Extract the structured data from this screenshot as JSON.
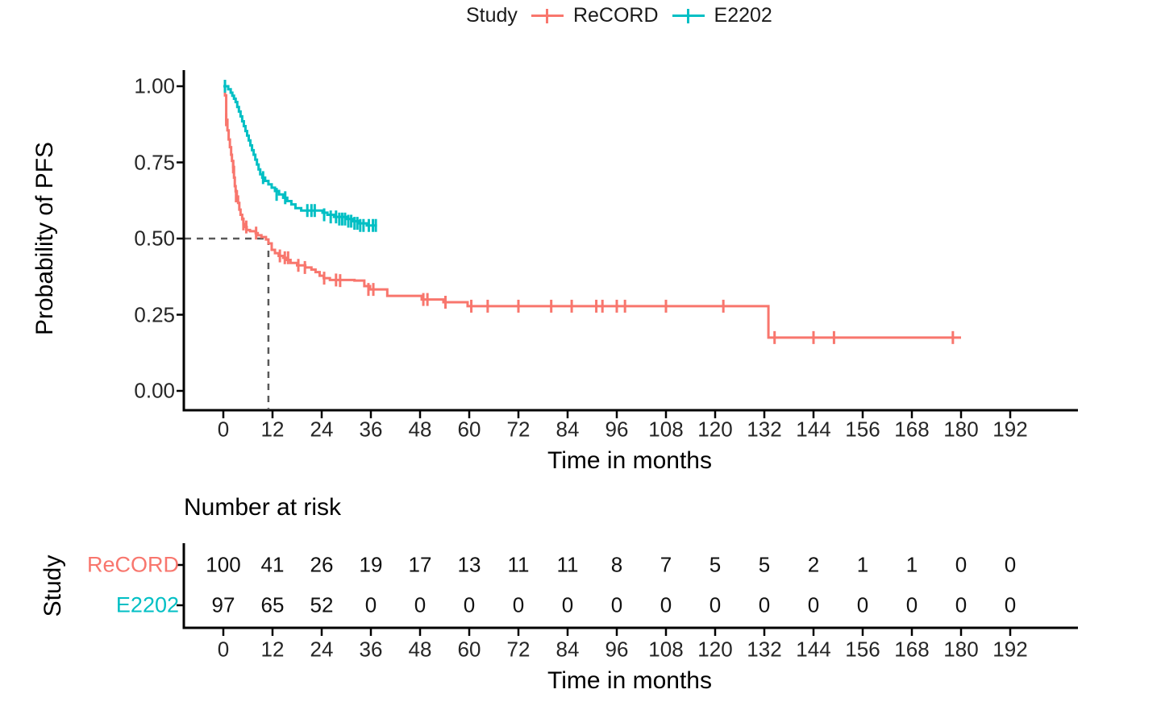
{
  "legend": {
    "title": "Study",
    "items": [
      {
        "label": "ReCORD",
        "color": "#F8766D"
      },
      {
        "label": "E2202",
        "color": "#00BFC4"
      }
    ]
  },
  "chart_data": {
    "type": "line",
    "subtype": "kaplan-meier-step",
    "title": "",
    "xlabel": "Time in months",
    "ylabel": "Probability of PFS",
    "xlim": [
      0,
      198
    ],
    "ylim": [
      0,
      1.0
    ],
    "xticks": [
      0,
      12,
      24,
      36,
      48,
      60,
      72,
      84,
      96,
      108,
      120,
      132,
      144,
      156,
      168,
      180,
      192
    ],
    "yticks": [
      0,
      0.25,
      0.5,
      0.75,
      1.0
    ],
    "ytick_labels": [
      "0.00",
      "0.25",
      "0.50",
      "0.75",
      "1.00"
    ],
    "grid": false,
    "legend_position": "top",
    "median_annotation": {
      "time": 11,
      "probability": 0.5,
      "style": "dashed",
      "color": "#595959"
    },
    "series": [
      {
        "name": "ReCORD",
        "color": "#F8766D",
        "points": [
          [
            0,
            1.0
          ],
          [
            0.4,
            0.97
          ],
          [
            0.7,
            0.89
          ],
          [
            1.0,
            0.855
          ],
          [
            1.3,
            0.825
          ],
          [
            1.6,
            0.8
          ],
          [
            1.9,
            0.775
          ],
          [
            2.1,
            0.755
          ],
          [
            2.4,
            0.735
          ],
          [
            2.6,
            0.7
          ],
          [
            2.8,
            0.672
          ],
          [
            3.0,
            0.655
          ],
          [
            3.3,
            0.638
          ],
          [
            3.6,
            0.617
          ],
          [
            3.9,
            0.595
          ],
          [
            4.2,
            0.578
          ],
          [
            4.6,
            0.563
          ],
          [
            4.9,
            0.548
          ],
          [
            5.3,
            0.538
          ],
          [
            5.7,
            0.528
          ],
          [
            6.5,
            0.524
          ],
          [
            7.9,
            0.518
          ],
          [
            8.4,
            0.511
          ],
          [
            9.3,
            0.505
          ],
          [
            10.4,
            0.497
          ],
          [
            11.0,
            0.484
          ],
          [
            11.8,
            0.463
          ],
          [
            12.6,
            0.452
          ],
          [
            13.5,
            0.443
          ],
          [
            14.6,
            0.437
          ],
          [
            15.5,
            0.43
          ],
          [
            16.4,
            0.42
          ],
          [
            18.0,
            0.412
          ],
          [
            20.0,
            0.405
          ],
          [
            21.5,
            0.398
          ],
          [
            22.5,
            0.39
          ],
          [
            23.5,
            0.378
          ],
          [
            24.5,
            0.37
          ],
          [
            26.0,
            0.364
          ],
          [
            32.0,
            0.362
          ],
          [
            34.4,
            0.344
          ],
          [
            35.8,
            0.333
          ],
          [
            40.0,
            0.312
          ],
          [
            48.4,
            0.3
          ],
          [
            53.7,
            0.291
          ],
          [
            59.6,
            0.278
          ],
          [
            133,
            0.278
          ],
          [
            133,
            0.175
          ],
          [
            180,
            0.175
          ]
        ],
        "censors": [
          [
            0.7,
            0.89
          ],
          [
            2.4,
            0.735
          ],
          [
            3.1,
            0.64
          ],
          [
            4.9,
            0.548
          ],
          [
            5.6,
            0.538
          ],
          [
            8.0,
            0.518
          ],
          [
            13.8,
            0.443
          ],
          [
            15.0,
            0.437
          ],
          [
            15.8,
            0.437
          ],
          [
            18.3,
            0.412
          ],
          [
            19.9,
            0.405
          ],
          [
            24.6,
            0.37
          ],
          [
            27.5,
            0.364
          ],
          [
            28.5,
            0.362
          ],
          [
            35.4,
            0.333
          ],
          [
            36.6,
            0.333
          ],
          [
            48.8,
            0.3
          ],
          [
            49.8,
            0.3
          ],
          [
            54.2,
            0.291
          ],
          [
            60.5,
            0.278
          ],
          [
            64.5,
            0.278
          ],
          [
            72,
            0.278
          ],
          [
            80,
            0.278
          ],
          [
            85,
            0.278
          ],
          [
            91,
            0.278
          ],
          [
            92.5,
            0.278
          ],
          [
            96,
            0.278
          ],
          [
            98,
            0.278
          ],
          [
            108,
            0.278
          ],
          [
            122,
            0.278
          ],
          [
            134.5,
            0.175
          ],
          [
            144,
            0.175
          ],
          [
            149,
            0.175
          ],
          [
            178,
            0.175
          ]
        ]
      },
      {
        "name": "E2202",
        "color": "#00BFC4",
        "points": [
          [
            0,
            1.0
          ],
          [
            1.2,
            0.99
          ],
          [
            1.8,
            0.979
          ],
          [
            2.2,
            0.969
          ],
          [
            2.6,
            0.959
          ],
          [
            3.0,
            0.948
          ],
          [
            3.4,
            0.932
          ],
          [
            3.8,
            0.917
          ],
          [
            4.2,
            0.901
          ],
          [
            4.6,
            0.885
          ],
          [
            5.0,
            0.869
          ],
          [
            5.4,
            0.853
          ],
          [
            5.8,
            0.838
          ],
          [
            6.2,
            0.822
          ],
          [
            6.6,
            0.806
          ],
          [
            7.0,
            0.79
          ],
          [
            7.4,
            0.775
          ],
          [
            7.8,
            0.759
          ],
          [
            8.2,
            0.743
          ],
          [
            8.6,
            0.727
          ],
          [
            9.0,
            0.711
          ],
          [
            9.5,
            0.7
          ],
          [
            10.2,
            0.689
          ],
          [
            11.0,
            0.678
          ],
          [
            11.8,
            0.667
          ],
          [
            12.6,
            0.656
          ],
          [
            13.6,
            0.645
          ],
          [
            14.6,
            0.634
          ],
          [
            15.6,
            0.623
          ],
          [
            16.6,
            0.612
          ],
          [
            17.6,
            0.6
          ],
          [
            19.0,
            0.592
          ],
          [
            24.2,
            0.585
          ],
          [
            25.4,
            0.578
          ],
          [
            27.0,
            0.571
          ],
          [
            30.0,
            0.564
          ],
          [
            31.5,
            0.557
          ],
          [
            33.0,
            0.55
          ],
          [
            35.0,
            0.543
          ],
          [
            37.5,
            0.543
          ]
        ],
        "censors": [
          [
            0.4,
            1.0
          ],
          [
            9.7,
            0.7
          ],
          [
            13.0,
            0.645
          ],
          [
            15.1,
            0.634
          ],
          [
            20.5,
            0.592
          ],
          [
            21.5,
            0.592
          ],
          [
            22.3,
            0.592
          ],
          [
            24.6,
            0.578
          ],
          [
            26.2,
            0.571
          ],
          [
            27.5,
            0.571
          ],
          [
            28.3,
            0.564
          ],
          [
            29.0,
            0.564
          ],
          [
            29.7,
            0.564
          ],
          [
            30.5,
            0.557
          ],
          [
            31.2,
            0.557
          ],
          [
            32.0,
            0.55
          ],
          [
            32.7,
            0.55
          ],
          [
            33.4,
            0.543
          ],
          [
            34.2,
            0.543
          ],
          [
            35.5,
            0.543
          ],
          [
            36.5,
            0.543
          ],
          [
            37.2,
            0.543
          ]
        ]
      }
    ]
  },
  "risk_table": {
    "title": "Number at risk",
    "axis_label": "Study",
    "xlabel": "Time in months",
    "xticks": [
      0,
      12,
      24,
      36,
      48,
      60,
      72,
      84,
      96,
      108,
      120,
      132,
      144,
      156,
      168,
      180,
      192
    ],
    "rows": [
      {
        "label": "ReCORD",
        "color": "#F8766D",
        "values": [
          100,
          41,
          26,
          19,
          17,
          13,
          11,
          11,
          8,
          7,
          5,
          5,
          2,
          1,
          1,
          0,
          0
        ]
      },
      {
        "label": "E2202",
        "color": "#00BFC4",
        "values": [
          97,
          65,
          52,
          0,
          0,
          0,
          0,
          0,
          0,
          0,
          0,
          0,
          0,
          0,
          0,
          0,
          0
        ]
      }
    ]
  }
}
